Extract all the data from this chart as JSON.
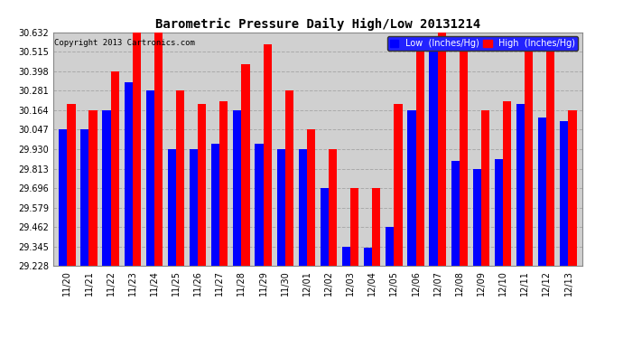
{
  "title": "Barometric Pressure Daily High/Low 20131214",
  "copyright": "Copyright 2013 Cartronics.com",
  "legend_low": "Low  (Inches/Hg)",
  "legend_high": "High  (Inches/Hg)",
  "ylim": [
    29.228,
    30.632
  ],
  "yticks": [
    29.228,
    29.345,
    29.462,
    29.579,
    29.696,
    29.813,
    29.93,
    30.047,
    30.164,
    30.281,
    30.398,
    30.515,
    30.632
  ],
  "bar_color_low": "#0000ff",
  "bar_color_high": "#ff0000",
  "background_color": "#ffffff",
  "plot_bg_color": "#d0d0d0",
  "grid_color": "#aaaaaa",
  "dates": [
    "11/20",
    "11/21",
    "11/22",
    "11/23",
    "11/24",
    "11/25",
    "11/26",
    "11/27",
    "11/28",
    "11/29",
    "11/30",
    "12/01",
    "12/02",
    "12/03",
    "12/04",
    "12/05",
    "12/06",
    "12/07",
    "12/08",
    "12/09",
    "12/10",
    "12/11",
    "12/12",
    "12/13"
  ],
  "low": [
    30.05,
    30.05,
    30.164,
    30.33,
    30.281,
    29.93,
    29.93,
    29.96,
    30.164,
    29.96,
    29.93,
    29.93,
    29.696,
    29.345,
    29.34,
    29.462,
    30.164,
    30.515,
    29.86,
    29.813,
    29.87,
    30.2,
    30.12,
    30.1
  ],
  "high": [
    30.2,
    30.164,
    30.398,
    30.632,
    30.632,
    30.281,
    30.2,
    30.22,
    30.44,
    30.56,
    30.281,
    30.047,
    29.93,
    29.696,
    29.696,
    30.2,
    30.515,
    30.632,
    30.56,
    30.164,
    30.22,
    30.515,
    30.515,
    30.164
  ],
  "bar_width": 0.38,
  "legend_facecolor": "#2222ff",
  "title_fontsize": 10,
  "tick_fontsize": 7,
  "copyright_fontsize": 6.5
}
